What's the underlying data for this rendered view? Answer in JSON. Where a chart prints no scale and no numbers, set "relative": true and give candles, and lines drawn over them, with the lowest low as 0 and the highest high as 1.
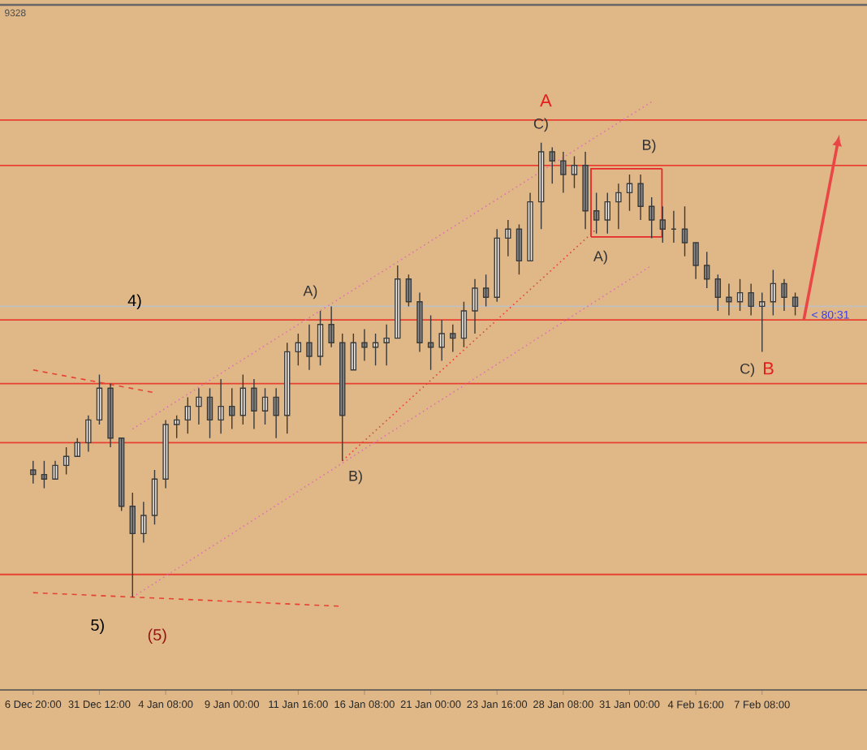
{
  "chart_data": {
    "type": "candlestick",
    "relative": true,
    "color": "#3a3a3a",
    "grid": false,
    "categories": [
      "6 Dec 20:00",
      null,
      null,
      null,
      null,
      null,
      "31 Dec 12:00",
      null,
      null,
      null,
      null,
      null,
      "4 Jan 08:00",
      null,
      null,
      null,
      null,
      null,
      "9 Jan 00:00",
      null,
      null,
      null,
      null,
      null,
      "11 Jan 16:00",
      null,
      null,
      null,
      null,
      null,
      "16 Jan 08:00",
      null,
      null,
      null,
      null,
      null,
      "21 Jan 00:00",
      null,
      null,
      null,
      null,
      null,
      "23 Jan 16:00",
      null,
      null,
      null,
      null,
      null,
      "28 Jan 08:00",
      null,
      null,
      null,
      null,
      null,
      "31 Jan 00:00",
      null,
      null,
      null,
      null,
      null,
      "4 Feb 16:00",
      null,
      null,
      null,
      null,
      null,
      "7 Feb 08:00",
      null,
      null,
      null
    ],
    "ohlc": [
      [
        0.28,
        0.3,
        0.25,
        0.27
      ],
      [
        0.27,
        0.3,
        0.24,
        0.26
      ],
      [
        0.26,
        0.3,
        0.26,
        0.29
      ],
      [
        0.29,
        0.33,
        0.27,
        0.31
      ],
      [
        0.31,
        0.35,
        0.31,
        0.34
      ],
      [
        0.34,
        0.4,
        0.32,
        0.39
      ],
      [
        0.39,
        0.49,
        0.38,
        0.46
      ],
      [
        0.46,
        0.47,
        0.33,
        0.35
      ],
      [
        0.35,
        0.35,
        0.19,
        0.2
      ],
      [
        0.2,
        0.23,
        0.0,
        0.14
      ],
      [
        0.14,
        0.21,
        0.12,
        0.18
      ],
      [
        0.18,
        0.28,
        0.16,
        0.26
      ],
      [
        0.26,
        0.39,
        0.24,
        0.38
      ],
      [
        0.38,
        0.4,
        0.35,
        0.39
      ],
      [
        0.39,
        0.44,
        0.36,
        0.42
      ],
      [
        0.42,
        0.46,
        0.38,
        0.44
      ],
      [
        0.44,
        0.46,
        0.35,
        0.39
      ],
      [
        0.39,
        0.48,
        0.36,
        0.42
      ],
      [
        0.42,
        0.46,
        0.37,
        0.4
      ],
      [
        0.4,
        0.49,
        0.38,
        0.46
      ],
      [
        0.46,
        0.48,
        0.37,
        0.41
      ],
      [
        0.41,
        0.46,
        0.38,
        0.44
      ],
      [
        0.44,
        0.46,
        0.35,
        0.4
      ],
      [
        0.4,
        0.56,
        0.36,
        0.54
      ],
      [
        0.54,
        0.58,
        0.51,
        0.56
      ],
      [
        0.56,
        0.6,
        0.5,
        0.53
      ],
      [
        0.53,
        0.63,
        0.51,
        0.6
      ],
      [
        0.6,
        0.64,
        0.55,
        0.56
      ],
      [
        0.56,
        0.58,
        0.3,
        0.4
      ],
      [
        0.5,
        0.58,
        0.5,
        0.56
      ],
      [
        0.56,
        0.59,
        0.52,
        0.55
      ],
      [
        0.55,
        0.58,
        0.51,
        0.56
      ],
      [
        0.56,
        0.6,
        0.51,
        0.57
      ],
      [
        0.57,
        0.73,
        0.57,
        0.7
      ],
      [
        0.7,
        0.71,
        0.64,
        0.65
      ],
      [
        0.65,
        0.67,
        0.54,
        0.56
      ],
      [
        0.56,
        0.62,
        0.5,
        0.55
      ],
      [
        0.55,
        0.61,
        0.52,
        0.58
      ],
      [
        0.58,
        0.6,
        0.54,
        0.57
      ],
      [
        0.57,
        0.65,
        0.55,
        0.63
      ],
      [
        0.63,
        0.7,
        0.58,
        0.68
      ],
      [
        0.68,
        0.71,
        0.64,
        0.66
      ],
      [
        0.66,
        0.81,
        0.65,
        0.79
      ],
      [
        0.79,
        0.83,
        0.75,
        0.81
      ],
      [
        0.81,
        0.82,
        0.71,
        0.74
      ],
      [
        0.74,
        0.89,
        0.74,
        0.87
      ],
      [
        0.87,
        1.0,
        0.81,
        0.98
      ],
      [
        0.98,
        0.99,
        0.91,
        0.96
      ],
      [
        0.96,
        0.98,
        0.89,
        0.93
      ],
      [
        0.93,
        0.97,
        0.9,
        0.95
      ],
      [
        0.95,
        0.98,
        0.81,
        0.85
      ],
      [
        0.85,
        0.89,
        0.8,
        0.83
      ],
      [
        0.83,
        0.89,
        0.8,
        0.87
      ],
      [
        0.87,
        0.91,
        0.81,
        0.89
      ],
      [
        0.89,
        0.93,
        0.85,
        0.91
      ],
      [
        0.91,
        0.93,
        0.83,
        0.86
      ],
      [
        0.86,
        0.88,
        0.79,
        0.83
      ],
      [
        0.83,
        0.86,
        0.78,
        0.81
      ],
      [
        0.81,
        0.85,
        0.78,
        0.81
      ],
      [
        0.81,
        0.86,
        0.75,
        0.78
      ],
      [
        0.78,
        0.78,
        0.7,
        0.73
      ],
      [
        0.73,
        0.76,
        0.68,
        0.7
      ],
      [
        0.7,
        0.71,
        0.63,
        0.66
      ],
      [
        0.66,
        0.69,
        0.62,
        0.65
      ],
      [
        0.65,
        0.7,
        0.63,
        0.67
      ],
      [
        0.67,
        0.69,
        0.62,
        0.64
      ],
      [
        0.64,
        0.67,
        0.54,
        0.65
      ],
      [
        0.65,
        0.72,
        0.62,
        0.69
      ],
      [
        0.69,
        0.7,
        0.63,
        0.66
      ],
      [
        0.66,
        0.67,
        0.62,
        0.64
      ]
    ],
    "series": [
      {
        "type": "line",
        "color": "#e070b0",
        "line_style": "dotted",
        "values": [
          null,
          null,
          null,
          null,
          null,
          null,
          null,
          null,
          null,
          0.37,
          null,
          null,
          null,
          null,
          null,
          null,
          null,
          null,
          null,
          null,
          null,
          null,
          null,
          null,
          null,
          null,
          null,
          null,
          null,
          null,
          null,
          null,
          null,
          null,
          null,
          null,
          null,
          null,
          null,
          null,
          null,
          null,
          null,
          null,
          null,
          null,
          null,
          null,
          null,
          null,
          null,
          null,
          null,
          null,
          null,
          null,
          1.09,
          null,
          null,
          null,
          null,
          null,
          null,
          null,
          null,
          null,
          null,
          null,
          null,
          null
        ]
      },
      {
        "type": "line",
        "color": "#e070b0",
        "line_style": "dotted",
        "values": [
          null,
          null,
          null,
          null,
          null,
          null,
          null,
          null,
          null,
          0.0,
          null,
          null,
          null,
          null,
          null,
          null,
          null,
          null,
          null,
          null,
          null,
          null,
          null,
          null,
          null,
          null,
          null,
          null,
          null,
          null,
          null,
          null,
          null,
          null,
          null,
          null,
          null,
          null,
          null,
          null,
          null,
          null,
          null,
          null,
          null,
          null,
          null,
          null,
          null,
          null,
          null,
          null,
          null,
          null,
          null,
          null,
          0.73,
          null,
          null,
          null,
          null,
          null,
          null,
          null,
          null,
          null,
          null,
          null,
          null,
          null
        ]
      },
      {
        "type": "line",
        "color": "#e84030",
        "line_style": "dotted",
        "values": [
          null,
          null,
          null,
          null,
          null,
          null,
          null,
          null,
          null,
          null,
          null,
          null,
          null,
          null,
          null,
          null,
          null,
          null,
          null,
          null,
          null,
          null,
          null,
          null,
          null,
          null,
          null,
          null,
          0.3,
          null,
          null,
          null,
          null,
          null,
          null,
          null,
          null,
          null,
          null,
          null,
          null,
          null,
          null,
          null,
          null,
          null,
          null,
          null,
          null,
          null,
          null,
          0.81,
          null,
          null,
          null,
          null,
          null,
          null,
          null,
          null,
          null,
          null,
          null,
          null,
          null,
          null,
          null,
          null,
          null,
          null
        ]
      },
      {
        "type": "line",
        "color": "#e84030",
        "line_style": "dashed",
        "values": [
          0.5,
          null,
          null,
          null,
          null,
          null,
          null,
          null,
          null,
          null,
          null,
          0.45,
          null,
          null,
          null,
          null,
          null,
          null,
          null,
          null,
          null,
          null,
          null,
          null,
          null,
          null,
          null,
          null,
          null,
          null,
          null,
          null,
          null,
          null,
          null,
          null,
          null,
          null,
          null,
          null,
          null,
          null,
          null,
          null,
          null,
          null,
          null,
          null,
          null,
          null,
          null,
          null,
          null,
          null,
          null,
          null,
          null,
          null,
          null,
          null,
          null,
          null,
          null,
          null,
          null,
          null,
          null,
          null,
          null,
          null
        ]
      },
      {
        "type": "line",
        "color": "#e84030",
        "line_style": "dashed",
        "values": [
          0.01,
          null,
          null,
          null,
          null,
          null,
          null,
          null,
          null,
          null,
          null,
          null,
          null,
          null,
          null,
          null,
          null,
          null,
          null,
          null,
          null,
          null,
          null,
          null,
          null,
          null,
          null,
          null,
          -0.02,
          null,
          null,
          null,
          null,
          null,
          null,
          null,
          null,
          null,
          null,
          null,
          null,
          null,
          null,
          null,
          null,
          null,
          null,
          null,
          null,
          null,
          null,
          null,
          null,
          null,
          null,
          null,
          null,
          null,
          null,
          null,
          null,
          null,
          null,
          null,
          null,
          null,
          null,
          null,
          null,
          null
        ]
      }
    ],
    "ref_lines": [
      {
        "axis": "y",
        "value": 1.05,
        "color": "#e84030"
      },
      {
        "axis": "y",
        "value": 0.95,
        "color": "#e84030"
      },
      {
        "axis": "y",
        "value": 0.64,
        "color": "#c0c0c0"
      },
      {
        "axis": "y",
        "value": 0.61,
        "color": "#e84030"
      },
      {
        "axis": "y",
        "value": 0.47,
        "color": "#e84030"
      },
      {
        "axis": "y",
        "value": 0.34,
        "color": "#e84030"
      },
      {
        "axis": "y",
        "value": 0.05,
        "color": "#e84030"
      }
    ],
    "annotations": [
      "9328",
      "A",
      "C)",
      {
        "text": "B)",
        "y": 0.95
      },
      {
        "text": "A)",
        "y": 0.79
      },
      "C)",
      "B",
      "A)",
      "B)",
      "4)",
      "5)",
      "(5)",
      "< 80:31"
    ]
  }
}
